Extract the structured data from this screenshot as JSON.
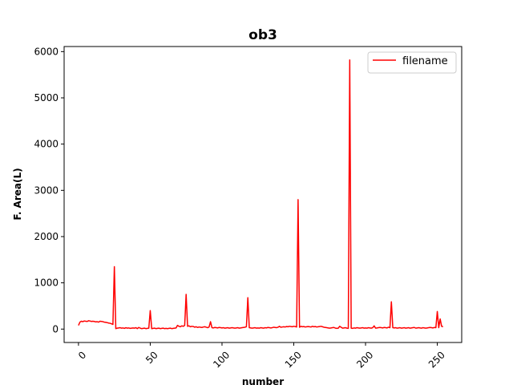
{
  "chart_data": {
    "type": "line",
    "title": "ob3",
    "xlabel": "number",
    "ylabel": "F. Area(L)",
    "xlim": [
      -10,
      267
    ],
    "ylim": [
      -290,
      6110
    ],
    "xticks": [
      0,
      50,
      100,
      150,
      200,
      250
    ],
    "yticks": [
      0,
      1000,
      2000,
      3000,
      4000,
      5000,
      6000
    ],
    "legend": "top-right",
    "grid": false,
    "series": [
      {
        "name": "filename",
        "color": "#ff0000",
        "points": [
          [
            0,
            80
          ],
          [
            1,
            150
          ],
          [
            2,
            170
          ],
          [
            3,
            160
          ],
          [
            4,
            175
          ],
          [
            5,
            170
          ],
          [
            6,
            165
          ],
          [
            7,
            180
          ],
          [
            8,
            175
          ],
          [
            9,
            165
          ],
          [
            10,
            170
          ],
          [
            11,
            165
          ],
          [
            12,
            155
          ],
          [
            13,
            160
          ],
          [
            14,
            150
          ],
          [
            15,
            170
          ],
          [
            16,
            165
          ],
          [
            17,
            160
          ],
          [
            18,
            150
          ],
          [
            19,
            145
          ],
          [
            20,
            140
          ],
          [
            21,
            130
          ],
          [
            22,
            125
          ],
          [
            23,
            115
          ],
          [
            24,
            100
          ],
          [
            25,
            1350
          ],
          [
            26,
            10
          ],
          [
            27,
            20
          ],
          [
            28,
            25
          ],
          [
            29,
            30
          ],
          [
            30,
            20
          ],
          [
            31,
            25
          ],
          [
            32,
            15
          ],
          [
            33,
            30
          ],
          [
            34,
            20
          ],
          [
            35,
            25
          ],
          [
            36,
            15
          ],
          [
            37,
            20
          ],
          [
            38,
            25
          ],
          [
            39,
            20
          ],
          [
            40,
            30
          ],
          [
            41,
            10
          ],
          [
            42,
            35
          ],
          [
            43,
            20
          ],
          [
            44,
            10
          ],
          [
            45,
            15
          ],
          [
            46,
            20
          ],
          [
            47,
            10
          ],
          [
            48,
            15
          ],
          [
            49,
            20
          ],
          [
            50,
            400
          ],
          [
            51,
            10
          ],
          [
            52,
            15
          ],
          [
            53,
            20
          ],
          [
            54,
            10
          ],
          [
            55,
            15
          ],
          [
            56,
            20
          ],
          [
            57,
            10
          ],
          [
            58,
            15
          ],
          [
            59,
            20
          ],
          [
            60,
            10
          ],
          [
            61,
            15
          ],
          [
            62,
            10
          ],
          [
            63,
            15
          ],
          [
            64,
            20
          ],
          [
            65,
            10
          ],
          [
            66,
            15
          ],
          [
            67,
            20
          ],
          [
            68,
            25
          ],
          [
            69,
            80
          ],
          [
            70,
            60
          ],
          [
            71,
            50
          ],
          [
            72,
            70
          ],
          [
            73,
            60
          ],
          [
            74,
            80
          ],
          [
            75,
            750
          ],
          [
            76,
            60
          ],
          [
            77,
            70
          ],
          [
            78,
            50
          ],
          [
            79,
            60
          ],
          [
            80,
            55
          ],
          [
            81,
            40
          ],
          [
            82,
            50
          ],
          [
            83,
            35
          ],
          [
            84,
            45
          ],
          [
            85,
            40
          ],
          [
            86,
            35
          ],
          [
            87,
            45
          ],
          [
            88,
            50
          ],
          [
            89,
            40
          ],
          [
            90,
            30
          ],
          [
            91,
            45
          ],
          [
            92,
            160
          ],
          [
            93,
            30
          ],
          [
            94,
            25
          ],
          [
            95,
            35
          ],
          [
            96,
            30
          ],
          [
            97,
            25
          ],
          [
            98,
            35
          ],
          [
            99,
            30
          ],
          [
            100,
            25
          ],
          [
            101,
            30
          ],
          [
            102,
            20
          ],
          [
            103,
            25
          ],
          [
            104,
            30
          ],
          [
            105,
            20
          ],
          [
            106,
            25
          ],
          [
            107,
            30
          ],
          [
            108,
            25
          ],
          [
            109,
            20
          ],
          [
            110,
            25
          ],
          [
            111,
            30
          ],
          [
            112,
            20
          ],
          [
            113,
            25
          ],
          [
            114,
            30
          ],
          [
            115,
            35
          ],
          [
            116,
            40
          ],
          [
            117,
            50
          ],
          [
            118,
            680
          ],
          [
            119,
            30
          ],
          [
            120,
            25
          ],
          [
            121,
            20
          ],
          [
            122,
            25
          ],
          [
            123,
            30
          ],
          [
            124,
            20
          ],
          [
            125,
            25
          ],
          [
            126,
            20
          ],
          [
            127,
            30
          ],
          [
            128,
            25
          ],
          [
            129,
            20
          ],
          [
            130,
            30
          ],
          [
            131,
            25
          ],
          [
            132,
            35
          ],
          [
            133,
            30
          ],
          [
            134,
            25
          ],
          [
            135,
            30
          ],
          [
            136,
            40
          ],
          [
            137,
            35
          ],
          [
            138,
            30
          ],
          [
            139,
            40
          ],
          [
            140,
            60
          ],
          [
            141,
            40
          ],
          [
            142,
            45
          ],
          [
            143,
            50
          ],
          [
            144,
            45
          ],
          [
            145,
            55
          ],
          [
            146,
            50
          ],
          [
            147,
            60
          ],
          [
            148,
            55
          ],
          [
            149,
            50
          ],
          [
            150,
            60
          ],
          [
            151,
            55
          ],
          [
            152,
            45
          ],
          [
            153,
            2800
          ],
          [
            154,
            40
          ],
          [
            155,
            60
          ],
          [
            156,
            50
          ],
          [
            157,
            55
          ],
          [
            158,
            45
          ],
          [
            159,
            50
          ],
          [
            160,
            55
          ],
          [
            161,
            50
          ],
          [
            162,
            45
          ],
          [
            163,
            60
          ],
          [
            164,
            50
          ],
          [
            165,
            55
          ],
          [
            166,
            45
          ],
          [
            167,
            50
          ],
          [
            168,
            55
          ],
          [
            169,
            60
          ],
          [
            170,
            50
          ],
          [
            171,
            40
          ],
          [
            172,
            35
          ],
          [
            173,
            30
          ],
          [
            174,
            25
          ],
          [
            175,
            20
          ],
          [
            176,
            25
          ],
          [
            177,
            30
          ],
          [
            178,
            35
          ],
          [
            179,
            20
          ],
          [
            180,
            15
          ],
          [
            181,
            20
          ],
          [
            182,
            60
          ],
          [
            183,
            40
          ],
          [
            184,
            20
          ],
          [
            185,
            25
          ],
          [
            186,
            30
          ],
          [
            187,
            20
          ],
          [
            188,
            15
          ],
          [
            189,
            5820
          ],
          [
            190,
            20
          ],
          [
            191,
            15
          ],
          [
            192,
            25
          ],
          [
            193,
            20
          ],
          [
            194,
            30
          ],
          [
            195,
            25
          ],
          [
            196,
            20
          ],
          [
            197,
            25
          ],
          [
            198,
            30
          ],
          [
            199,
            20
          ],
          [
            200,
            25
          ],
          [
            201,
            20
          ],
          [
            202,
            30
          ],
          [
            203,
            25
          ],
          [
            204,
            20
          ],
          [
            205,
            30
          ],
          [
            206,
            70
          ],
          [
            207,
            20
          ],
          [
            208,
            25
          ],
          [
            209,
            30
          ],
          [
            210,
            35
          ],
          [
            211,
            30
          ],
          [
            212,
            25
          ],
          [
            213,
            35
          ],
          [
            214,
            30
          ],
          [
            215,
            25
          ],
          [
            216,
            40
          ],
          [
            217,
            30
          ],
          [
            218,
            590
          ],
          [
            219,
            30
          ],
          [
            220,
            25
          ],
          [
            221,
            30
          ],
          [
            222,
            20
          ],
          [
            223,
            25
          ],
          [
            224,
            30
          ],
          [
            225,
            20
          ],
          [
            226,
            25
          ],
          [
            227,
            30
          ],
          [
            228,
            20
          ],
          [
            229,
            25
          ],
          [
            230,
            30
          ],
          [
            231,
            20
          ],
          [
            232,
            25
          ],
          [
            233,
            30
          ],
          [
            234,
            35
          ],
          [
            235,
            20
          ],
          [
            236,
            25
          ],
          [
            237,
            30
          ],
          [
            238,
            25
          ],
          [
            239,
            20
          ],
          [
            240,
            30
          ],
          [
            241,
            25
          ],
          [
            242,
            20
          ],
          [
            243,
            25
          ],
          [
            244,
            30
          ],
          [
            245,
            35
          ],
          [
            246,
            30
          ],
          [
            247,
            25
          ],
          [
            248,
            35
          ],
          [
            249,
            30
          ],
          [
            250,
            380
          ],
          [
            251,
            30
          ],
          [
            252,
            220
          ],
          [
            253,
            60
          ],
          [
            254,
            50
          ]
        ]
      }
    ]
  }
}
